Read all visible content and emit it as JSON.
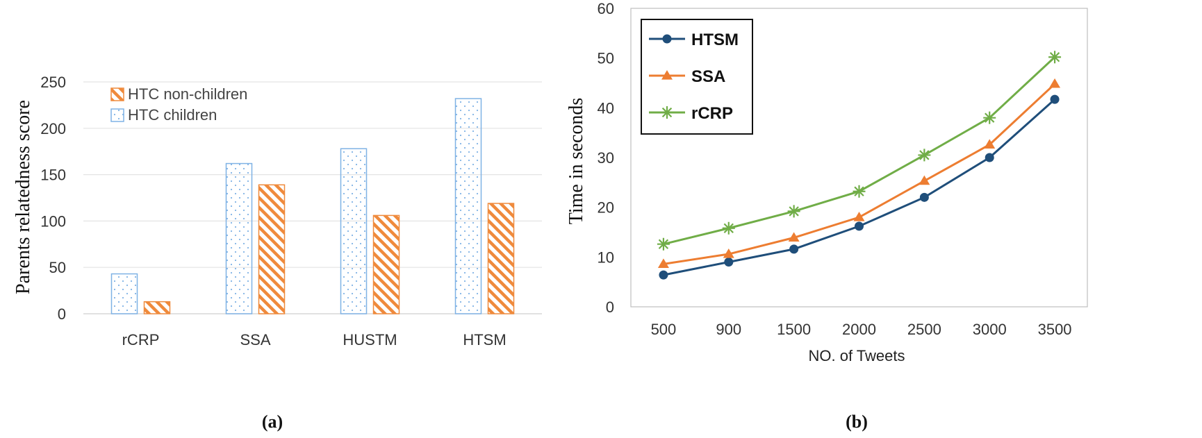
{
  "chart_data": [
    {
      "type": "bar",
      "caption": "(a)",
      "title": "",
      "xlabel": "",
      "ylabel": "Parents relatedness score",
      "ylim": [
        0,
        250
      ],
      "yticks": [
        0,
        50,
        100,
        150,
        200,
        250
      ],
      "categories": [
        "rCRP",
        "SSA",
        "HUSTM",
        "HTSM"
      ],
      "series": [
        {
          "name": "HTC children",
          "values": [
            43,
            162,
            178,
            232
          ],
          "color": "#7fb2e5",
          "pattern": "dots"
        },
        {
          "name": "HTC non-children",
          "values": [
            13,
            139,
            106,
            119
          ],
          "color": "#ef8a3c",
          "pattern": "hatch"
        }
      ],
      "legend_order": [
        "HTC non-children",
        "HTC children"
      ],
      "grid": true
    },
    {
      "type": "line",
      "caption": "(b)",
      "title": "",
      "xlabel": "NO. of Tweets",
      "ylabel": "Time in seconds",
      "ylim": [
        0,
        60
      ],
      "yticks": [
        0,
        10,
        20,
        30,
        40,
        50,
        60
      ],
      "x": [
        "500",
        "900",
        "1500",
        "2000",
        "2500",
        "3000",
        "3500"
      ],
      "series": [
        {
          "name": "HTSM",
          "values": [
            6.4,
            9.0,
            11.6,
            16.2,
            22.0,
            30.0,
            41.7
          ],
          "color": "#1f4e7a",
          "marker": "circle"
        },
        {
          "name": "SSA",
          "values": [
            8.6,
            10.6,
            13.9,
            18.0,
            25.3,
            32.6,
            44.8
          ],
          "color": "#ed7d31",
          "marker": "triangle"
        },
        {
          "name": "rCRP",
          "values": [
            12.6,
            15.8,
            19.2,
            23.2,
            30.5,
            38.0,
            50.2
          ],
          "color": "#70ad47",
          "marker": "asterisk"
        }
      ],
      "grid": false
    }
  ]
}
